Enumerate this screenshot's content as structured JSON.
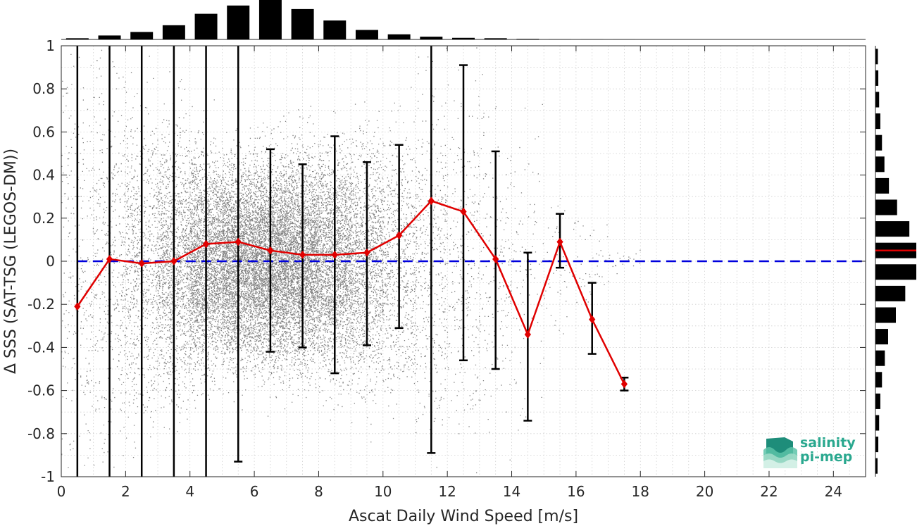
{
  "chart_data": {
    "type": "scatter",
    "title": "",
    "xlabel": "Ascat Daily Wind Speed [m/s]",
    "ylabel": "Δ SSS (SAT-TSG (LEGOS-DM))",
    "xlim": [
      0,
      25
    ],
    "ylim": [
      -1,
      1
    ],
    "x_ticks": [
      0,
      2,
      4,
      6,
      8,
      10,
      12,
      14,
      16,
      18,
      20,
      22,
      24
    ],
    "y_ticks": [
      -1,
      -0.8,
      -0.6,
      -0.4,
      -0.2,
      0,
      0.2,
      0.4,
      0.6,
      0.8,
      1
    ],
    "y_tick_labels": [
      "-1",
      "-0.8",
      "-0.6",
      "-0.4",
      "-0.2",
      "0",
      "0.2",
      "0.4",
      "0.6",
      "0.8",
      "1"
    ],
    "grid": true,
    "zero_line": {
      "y": 0,
      "color": "#0000dd",
      "style": "dashed"
    },
    "binned_mean": {
      "color": "#e00000",
      "x": [
        0.5,
        1.5,
        2.5,
        3.5,
        4.5,
        5.5,
        6.5,
        7.5,
        8.5,
        9.5,
        10.5,
        11.5,
        12.5,
        13.5,
        14.5,
        15.5,
        16.5,
        17.5
      ],
      "y": [
        -0.21,
        0.01,
        -0.01,
        0.0,
        0.08,
        0.09,
        0.05,
        0.03,
        0.03,
        0.04,
        0.12,
        0.28,
        0.23,
        0.01,
        -0.34,
        0.09,
        -0.27,
        -0.57
      ],
      "err_low": [
        -1.0,
        -1.0,
        -1.0,
        -1.0,
        -1.0,
        -0.93,
        -0.42,
        -0.4,
        -0.52,
        -0.39,
        -0.31,
        -0.89,
        -0.46,
        -0.5,
        -0.74,
        -0.03,
        -0.43,
        -0.6
      ],
      "err_high": [
        1.0,
        1.0,
        1.0,
        1.0,
        1.0,
        1.0,
        0.52,
        0.45,
        0.58,
        0.46,
        0.54,
        1.0,
        0.91,
        0.51,
        0.04,
        0.22,
        -0.1,
        -0.54
      ]
    },
    "scatter_cloud": {
      "color": "#808080",
      "x_centers": [
        0.5,
        1.5,
        2.5,
        3.5,
        4.5,
        5.5,
        6.5,
        7.5,
        8.5,
        9.5,
        10.5,
        11.5,
        12.5,
        13.5,
        14.5,
        15.5,
        16.5,
        17.5
      ],
      "spread": [
        0.55,
        0.45,
        0.35,
        0.3,
        0.25,
        0.23,
        0.23,
        0.24,
        0.26,
        0.28,
        0.3,
        0.35,
        0.4,
        0.4,
        0.35,
        0.15,
        0.12,
        0.03
      ],
      "relative_density": [
        0.03,
        0.05,
        0.09,
        0.16,
        0.27,
        0.34,
        0.38,
        0.33,
        0.24,
        0.16,
        0.08,
        0.05,
        0.03,
        0.02,
        0.01,
        0.005,
        0.004,
        0.002
      ]
    },
    "top_histogram": {
      "bin_centers": [
        0.5,
        1.5,
        2.5,
        3.5,
        4.5,
        5.5,
        6.5,
        7.5,
        8.5,
        9.5,
        10.5,
        11.5,
        12.5,
        13.5,
        14.5,
        15.5,
        16.5,
        17.5
      ],
      "relative_counts": [
        0.03,
        0.1,
        0.19,
        0.36,
        0.65,
        0.86,
        1.0,
        0.77,
        0.48,
        0.24,
        0.13,
        0.07,
        0.04,
        0.03,
        0.015,
        0.005,
        0.004,
        0.002
      ]
    },
    "right_histogram": {
      "bin_centers": [
        0.95,
        0.85,
        0.75,
        0.65,
        0.55,
        0.45,
        0.35,
        0.25,
        0.15,
        0.05,
        -0.05,
        -0.15,
        -0.25,
        -0.35,
        -0.45,
        -0.55,
        -0.65,
        -0.75,
        -0.85,
        -0.95
      ],
      "relative_counts": [
        0.06,
        0.07,
        0.09,
        0.12,
        0.16,
        0.22,
        0.33,
        0.53,
        0.83,
        1.0,
        1.0,
        0.73,
        0.5,
        0.31,
        0.23,
        0.16,
        0.12,
        0.09,
        0.07,
        0.05
      ],
      "mean_line": {
        "y": 0.05,
        "color": "#e00000"
      }
    }
  },
  "logo": {
    "line1": "salinity",
    "line2": "pi-mep",
    "icon": "wave-stack-icon",
    "color": "#2aa88f"
  }
}
